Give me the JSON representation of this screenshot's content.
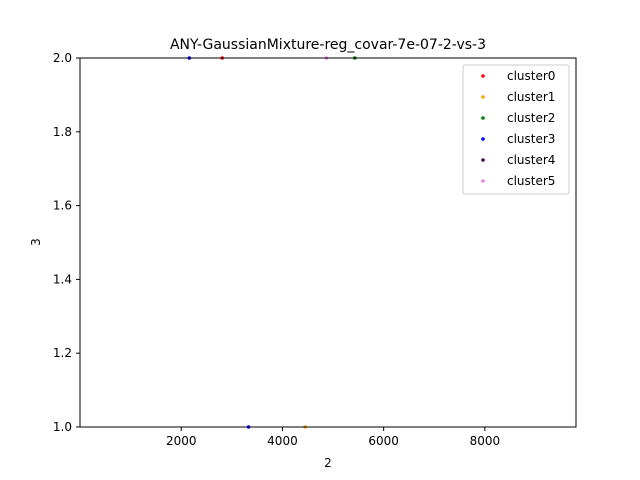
{
  "chart_data": {
    "type": "scatter",
    "title": "ANY-GaussianMixture-reg_covar-7e-07-2-vs-3",
    "xlabel": "2",
    "ylabel": "3",
    "xlim": [
      0,
      9800
    ],
    "ylim": [
      1.0,
      2.0
    ],
    "xticks": [
      2000,
      4000,
      6000,
      8000
    ],
    "xtick_labels": [
      "2000",
      "4000",
      "6000",
      "8000"
    ],
    "yticks": [
      1.0,
      1.2,
      1.4,
      1.6,
      1.8,
      2.0
    ],
    "ytick_labels": [
      "1.0",
      "1.2",
      "1.4",
      "1.6",
      "1.8",
      "2.0"
    ],
    "grid": false,
    "legend_position": "top-right",
    "series": [
      {
        "name": "cluster0",
        "color": "#ff0000",
        "points": [
          [
            2810,
            2.0
          ]
        ]
      },
      {
        "name": "cluster1",
        "color": "#ffa500",
        "points": [
          [
            4450,
            1.0
          ]
        ]
      },
      {
        "name": "cluster2",
        "color": "#008000",
        "points": [
          [
            5430,
            2.0
          ]
        ]
      },
      {
        "name": "cluster3",
        "color": "#0000ff",
        "points": [
          [
            2160,
            2.0
          ],
          [
            3330,
            1.0
          ]
        ]
      },
      {
        "name": "cluster4",
        "color": "#4b0055",
        "points": []
      },
      {
        "name": "cluster5",
        "color": "#ee82ee",
        "points": [
          [
            4870,
            2.0
          ]
        ]
      }
    ]
  }
}
